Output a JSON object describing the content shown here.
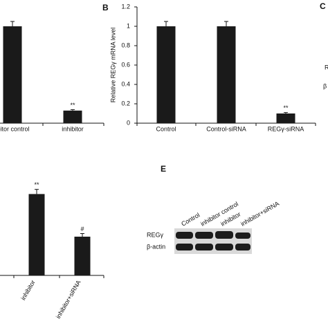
{
  "chart_data": [
    {
      "type": "bar",
      "categories": [
        "ibitor control",
        "inhibitor"
      ],
      "values": [
        1.0,
        0.13
      ],
      "errors": [
        0.05,
        0.01
      ],
      "annotations": [
        null,
        "**"
      ],
      "ylim": [
        0,
        1.2
      ],
      "color": "#1a1a1a"
    },
    {
      "type": "bar",
      "label": "B",
      "ylabel": "Relative REGγ mRNA level",
      "categories": [
        "Control",
        "Control-siRNA",
        "REGγ-siRNA"
      ],
      "values": [
        1.0,
        1.0,
        0.1
      ],
      "errors": [
        0.05,
        0.05,
        0.01
      ],
      "annotations": [
        null,
        null,
        "**"
      ],
      "ylim": [
        0,
        1.2
      ],
      "yticks": [
        0,
        0.2,
        0.4,
        0.6,
        0.8,
        1,
        1.2
      ],
      "color": "#1a1a1a"
    },
    {
      "type": "bar",
      "categories": [
        "inhibitor",
        "inhibitor+siRNA"
      ],
      "values": [
        2.1,
        1.0
      ],
      "errors": [
        0.12,
        0.08
      ],
      "annotations": [
        "**",
        "#"
      ],
      "ylim": [
        0,
        2.5
      ],
      "color": "#1a1a1a"
    }
  ],
  "panel_c": {
    "label": "C",
    "row_labels": [
      "R",
      "β"
    ]
  },
  "blot": {
    "label": "E",
    "columns": [
      "Control",
      "inhibitor control",
      "inhibitor",
      "inhibitor+siRNA"
    ],
    "rows": [
      "REGγ",
      "β-actin"
    ]
  }
}
